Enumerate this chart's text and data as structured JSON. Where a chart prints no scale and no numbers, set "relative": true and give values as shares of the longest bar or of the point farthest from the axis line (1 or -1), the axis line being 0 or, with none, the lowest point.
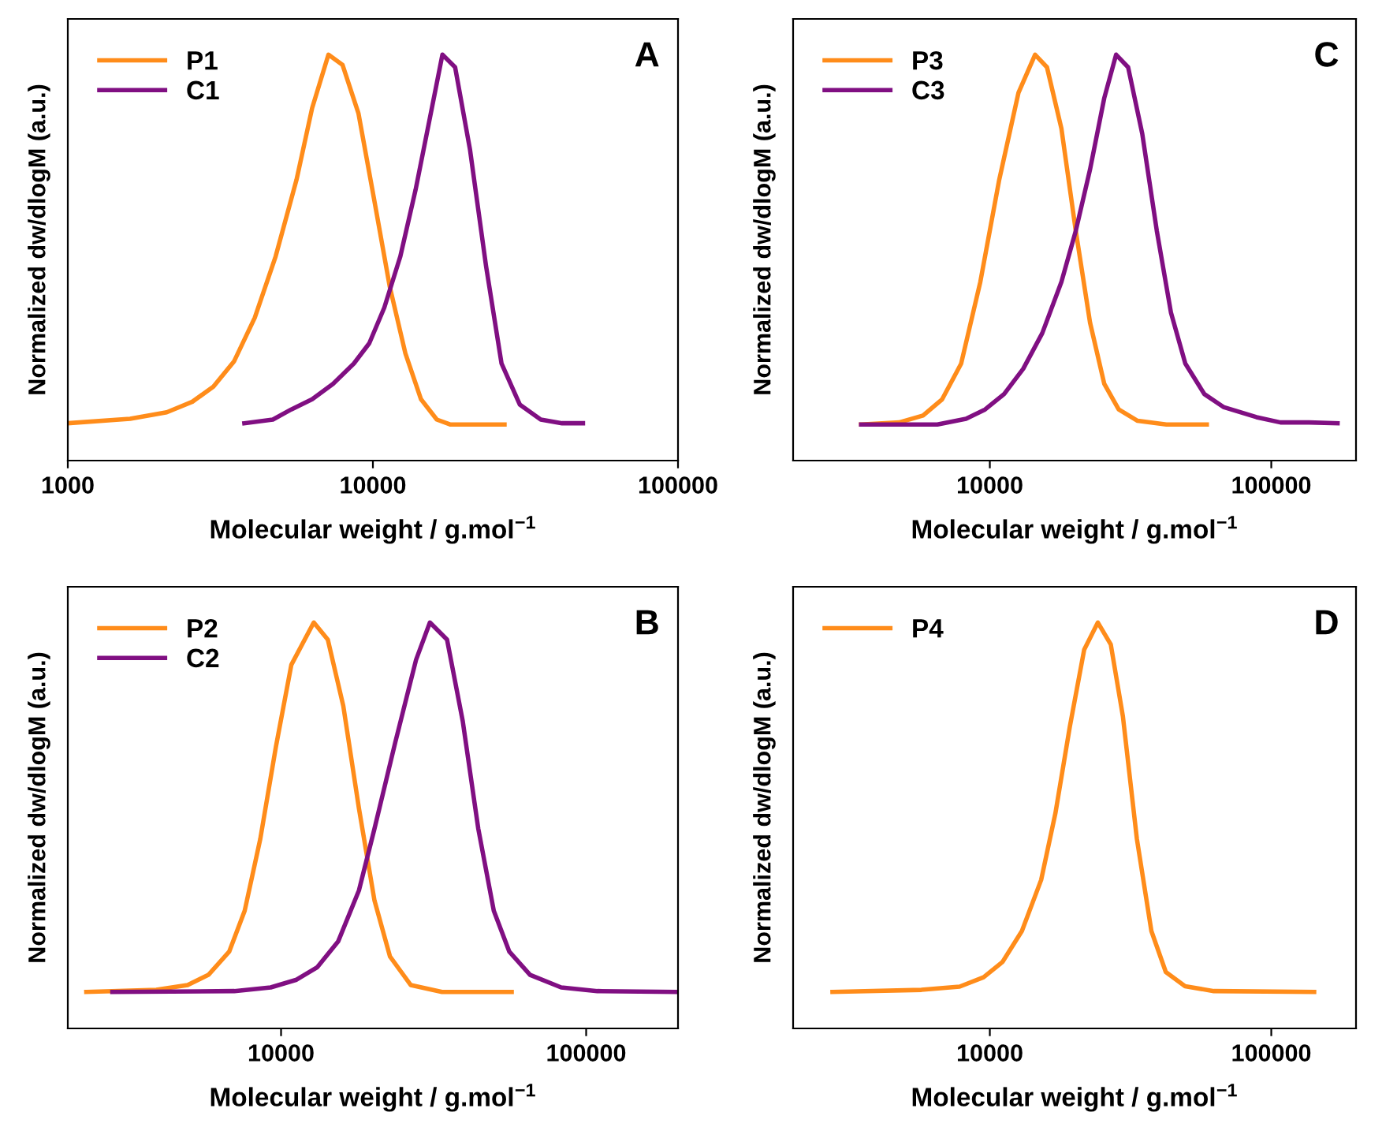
{
  "chart_data": [
    {
      "type": "line",
      "xlabel": "Molecular weight / g.mol$^{−1}$",
      "ylabel": "Normalized dw/dlogM (a.u.)",
      "relative": true,
      "log": "x",
      "xlim": [
        1000,
        100000
      ],
      "xticks": [
        1000,
        10000,
        100000
      ],
      "tick_labels": "x",
      "legend": "top left",
      "annotations": [
        "A"
      ],
      "series": [
        {
          "name": "P1",
          "color": "#ff8c1a",
          "x": [
            1000,
            1600,
            2110,
            2560,
            3000,
            3510,
            4100,
            4800,
            5620,
            6320,
            7150,
            7950,
            8970,
            10100,
            11360,
            12780,
            14380,
            16200,
            17900,
            27000
          ],
          "values": [
            0.092,
            0.103,
            0.119,
            0.145,
            0.182,
            0.245,
            0.352,
            0.503,
            0.692,
            0.868,
            1.0,
            0.975,
            0.855,
            0.642,
            0.428,
            0.264,
            0.151,
            0.101,
            0.089,
            0.089
          ]
        },
        {
          "name": "C1",
          "color": "#800f82",
          "x": [
            3790,
            4700,
            5400,
            6320,
            7400,
            8660,
            9730,
            10900,
            12300,
            13800,
            15600,
            16900,
            18600,
            20800,
            23500,
            26400,
            30300,
            35500,
            41700,
            48800
          ],
          "values": [
            0.092,
            0.101,
            0.126,
            0.151,
            0.189,
            0.239,
            0.289,
            0.377,
            0.503,
            0.667,
            0.868,
            1.0,
            0.969,
            0.767,
            0.478,
            0.239,
            0.138,
            0.101,
            0.092,
            0.092
          ]
        }
      ]
    },
    {
      "type": "line",
      "relative": true,
      "log": "x",
      "xlim": [
        2000,
        200000
      ],
      "xticks": [
        10000,
        100000
      ],
      "tick_labels": "x",
      "legend": "top left",
      "annotations": [
        "C"
      ],
      "xlabel": "Molecular weight / g.mol$^{−1}$",
      "ylabel": "Normalized dw/dlogM (a.u.)",
      "series": [
        {
          "name": "P3",
          "color": "#ff8c1a",
          "x": [
            3490,
            4760,
            5790,
            6770,
            7910,
            9250,
            10800,
            12640,
            14480,
            15960,
            17960,
            20200,
            22700,
            25500,
            28700,
            33500,
            42400,
            59000
          ],
          "values": [
            0.089,
            0.094,
            0.111,
            0.151,
            0.239,
            0.44,
            0.692,
            0.906,
            1.0,
            0.969,
            0.818,
            0.566,
            0.34,
            0.189,
            0.126,
            0.098,
            0.089,
            0.089
          ]
        },
        {
          "name": "C3",
          "color": "#800f82",
          "x": [
            3490,
            6510,
            8230,
            9620,
            11240,
            13140,
            15360,
            17960,
            20200,
            22700,
            25500,
            28100,
            31000,
            34800,
            39200,
            44000,
            49500,
            57800,
            67600,
            88600,
            107800,
            136200,
            172000
          ],
          "values": [
            0.089,
            0.089,
            0.103,
            0.126,
            0.164,
            0.226,
            0.314,
            0.44,
            0.566,
            0.717,
            0.893,
            1.0,
            0.969,
            0.805,
            0.566,
            0.365,
            0.239,
            0.164,
            0.132,
            0.107,
            0.094,
            0.094,
            0.092
          ]
        }
      ]
    },
    {
      "type": "line",
      "relative": true,
      "log": "x",
      "xlim": [
        2000,
        200000
      ],
      "xticks": [
        10000,
        100000
      ],
      "tick_labels": "x",
      "legend": "top left",
      "annotations": [
        "B"
      ],
      "xlabel": "Molecular weight / g.mol$^{−1}$",
      "ylabel": "Normalized dw/dlogM (a.u.)",
      "series": [
        {
          "name": "P2",
          "color": "#ff8c1a",
          "x": [
            2300,
            3900,
            4940,
            5780,
            6760,
            7600,
            8550,
            9620,
            10810,
            12800,
            14230,
            16000,
            18000,
            20240,
            22760,
            26600,
            33700,
            57000
          ],
          "values": [
            0.09,
            0.095,
            0.107,
            0.132,
            0.189,
            0.29,
            0.467,
            0.694,
            0.896,
            1.0,
            0.958,
            0.794,
            0.542,
            0.315,
            0.177,
            0.107,
            0.09,
            0.09
          ]
        },
        {
          "name": "C2",
          "color": "#800f82",
          "x": [
            2800,
            7030,
            9250,
            11240,
            13150,
            15380,
            18000,
            20240,
            23700,
            27700,
            30750,
            35000,
            39400,
            44300,
            49800,
            56000,
            65500,
            82800,
            108800,
            200000
          ],
          "values": [
            0.09,
            0.092,
            0.101,
            0.12,
            0.151,
            0.214,
            0.34,
            0.492,
            0.706,
            0.908,
            1.0,
            0.958,
            0.757,
            0.492,
            0.29,
            0.189,
            0.132,
            0.101,
            0.092,
            0.09
          ]
        }
      ]
    },
    {
      "type": "line",
      "relative": true,
      "log": "x",
      "xlim": [
        2000,
        200000
      ],
      "xticks": [
        10000,
        100000
      ],
      "tick_labels": "x",
      "legend": "top left",
      "annotations": [
        "D"
      ],
      "xlabel": "Molecular weight / g.mol$^{−1}$",
      "ylabel": "Normalized dw/dlogM (a.u.)",
      "series": [
        {
          "name": "P4",
          "color": "#ff8c1a",
          "x": [
            2760,
            5710,
            7810,
            9500,
            11100,
            13000,
            15220,
            17100,
            19250,
            21640,
            24200,
            26900,
            29700,
            33300,
            37500,
            42200,
            49400,
            62500,
            142000
          ],
          "values": [
            0.09,
            0.095,
            0.103,
            0.126,
            0.164,
            0.24,
            0.366,
            0.53,
            0.744,
            0.933,
            1.0,
            0.946,
            0.769,
            0.467,
            0.24,
            0.139,
            0.104,
            0.092,
            0.09
          ]
        }
      ]
    }
  ]
}
